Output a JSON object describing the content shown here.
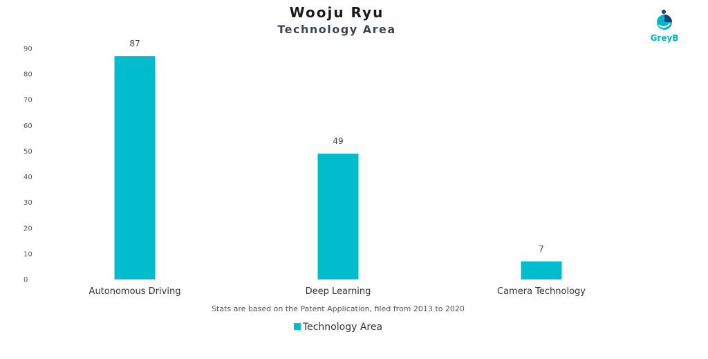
{
  "chart_title": "Wooju Ryu",
  "chart_subtitle": "Technology Area",
  "logo": {
    "text": "GreyB",
    "icon": "greyb-logo-icon"
  },
  "note": "Stats are based on the Patent Application, filed from 2013 to 2020",
  "colors": {
    "bar": "#00bccd",
    "logo": "#00b5c8"
  },
  "chart_data": {
    "type": "bar",
    "title": "Wooju Ryu",
    "subtitle": "Technology Area",
    "categories": [
      "Autonomous Driving",
      "Deep Learning",
      "Camera Technology"
    ],
    "series": [
      {
        "name": "Technology Area",
        "values": [
          87,
          49,
          7
        ]
      }
    ],
    "ylim": [
      0,
      90
    ],
    "yticks": [
      0,
      10,
      20,
      30,
      40,
      50,
      60,
      70,
      80,
      90
    ],
    "xlabel": "",
    "ylabel": "",
    "grid": false,
    "data_labels": true,
    "legend": "bottom-center"
  }
}
